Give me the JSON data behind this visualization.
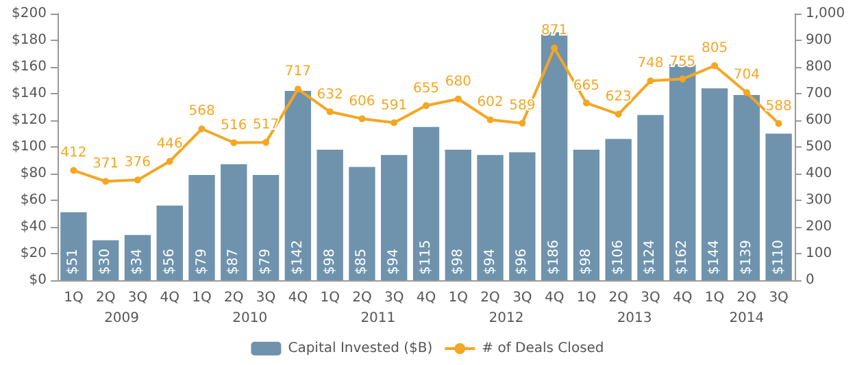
{
  "chart_data": {
    "type": "bar",
    "categories": [
      "1Q",
      "2Q",
      "3Q",
      "4Q",
      "1Q",
      "2Q",
      "3Q",
      "4Q",
      "1Q",
      "2Q",
      "3Q",
      "4Q",
      "1Q",
      "2Q",
      "3Q",
      "4Q",
      "1Q",
      "2Q",
      "3Q",
      "4Q",
      "1Q",
      "2Q",
      "3Q"
    ],
    "annotations": [
      "2009",
      "2010",
      "2011",
      "2012",
      "2013",
      "2014"
    ],
    "series": [
      {
        "name": "Capital Invested ($B)",
        "color": "#6f93ad",
        "values": [
          51,
          30,
          34,
          56,
          79,
          87,
          79,
          142,
          98,
          85,
          94,
          115,
          98,
          94,
          96,
          186,
          98,
          106,
          124,
          162,
          144,
          139,
          110
        ],
        "value_labels": [
          "$51",
          "$30",
          "$34",
          "$56",
          "$79",
          "$87",
          "$79",
          "$142",
          "$98",
          "$85",
          "$94",
          "$115",
          "$98",
          "$94",
          "$96",
          "$186",
          "$98",
          "$106",
          "$124",
          "$162",
          "$144",
          "$139",
          "$110"
        ]
      },
      {
        "name": "# of Deals Closed",
        "type": "line",
        "axis": "y2",
        "color": "#f5a623",
        "marker": "circle",
        "values": [
          412,
          371,
          376,
          446,
          568,
          516,
          517,
          717,
          632,
          606,
          591,
          655,
          680,
          602,
          589,
          871,
          665,
          623,
          748,
          755,
          805,
          704,
          588
        ],
        "value_labels": [
          "412",
          "371",
          "376",
          "446",
          "568",
          "516",
          "517",
          "717",
          "632",
          "606",
          "591",
          "655",
          "680",
          "602",
          "589",
          "871",
          "665",
          "623",
          "748",
          "755",
          "805",
          "704",
          "588"
        ]
      }
    ],
    "ylim": [
      0,
      200
    ],
    "yticks": [
      {
        "value": 0,
        "label": "$0"
      },
      {
        "value": 20,
        "label": "$20"
      },
      {
        "value": 40,
        "label": "$40"
      },
      {
        "value": 60,
        "label": "$60"
      },
      {
        "value": 80,
        "label": "$80"
      },
      {
        "value": 100,
        "label": "$100"
      },
      {
        "value": 120,
        "label": "$120"
      },
      {
        "value": 140,
        "label": "$140"
      },
      {
        "value": 160,
        "label": "$160"
      },
      {
        "value": 180,
        "label": "$180"
      },
      {
        "value": 200,
        "label": "$200"
      }
    ],
    "y2lim": [
      0,
      1000
    ],
    "y2ticks": [
      0,
      100,
      200,
      300,
      400,
      500,
      600,
      700,
      800,
      900,
      {
        "value": 1000,
        "label": "1,000"
      }
    ],
    "legend": "bottom",
    "grid": false
  }
}
